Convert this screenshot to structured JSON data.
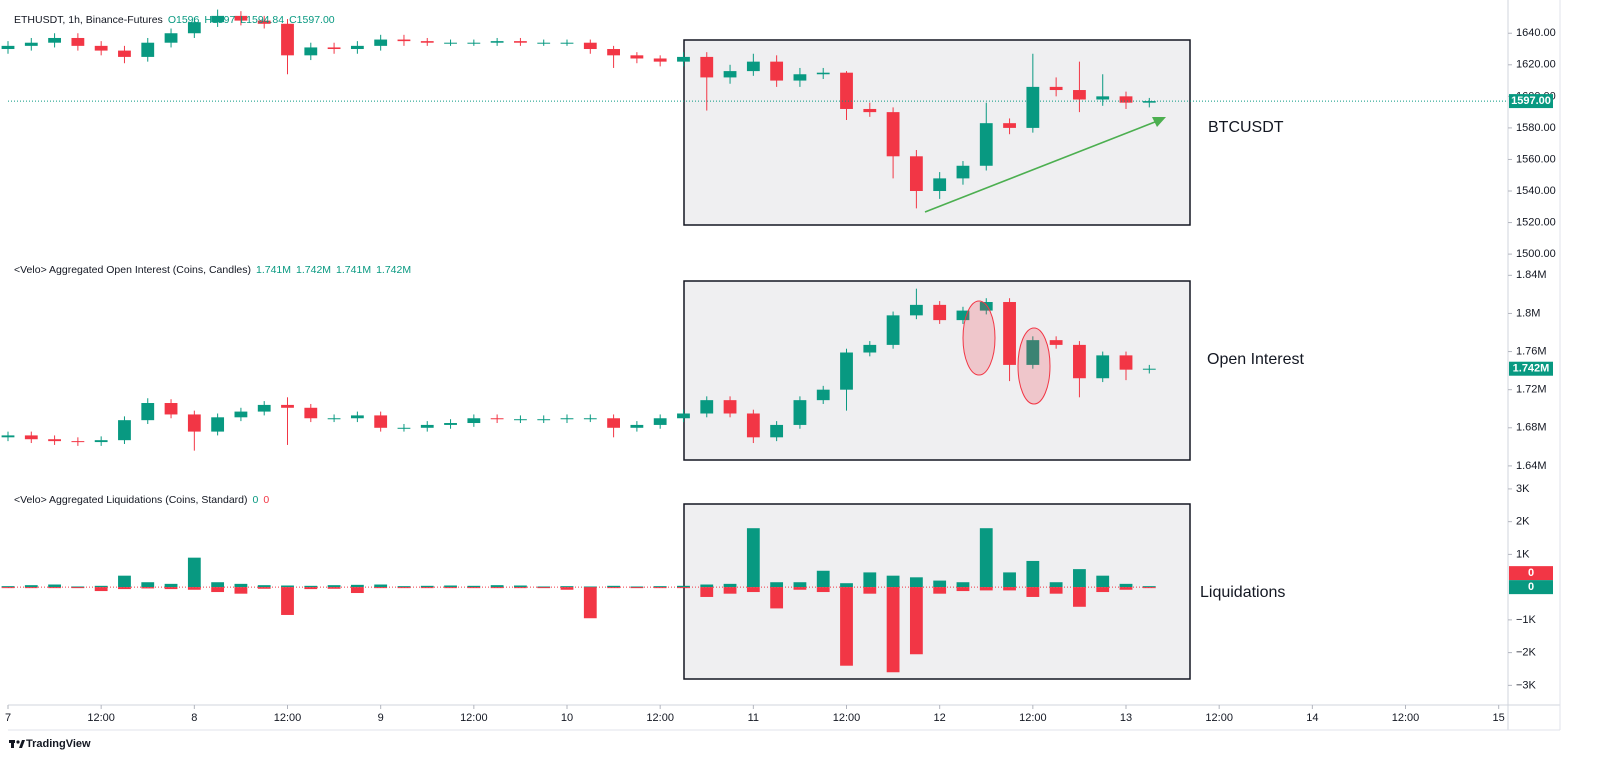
{
  "chart_data": [
    {
      "type": "candlestick",
      "title": "ETHUSDT, 1h, Binance-Futures",
      "ohlc_labels": [
        "O1596",
        "H1597",
        "L1594.84",
        "C1597.00"
      ],
      "last_label": "1597.00",
      "annotation": "BTCUSDT",
      "up_color": "#089981",
      "down_color": "#f23645",
      "x": [
        0,
        3,
        6,
        9,
        12,
        15,
        18,
        21,
        24,
        27,
        30,
        33,
        36,
        39,
        42,
        45,
        48,
        51,
        54,
        57,
        60,
        63,
        66,
        69,
        72,
        75,
        78,
        81,
        84,
        87,
        90,
        93,
        96,
        99,
        102,
        105,
        108,
        111,
        114,
        117,
        120,
        123,
        126,
        129,
        132,
        135,
        138,
        141,
        144,
        147
      ],
      "open": [
        1630,
        1632,
        1634,
        1637,
        1632,
        1629,
        1625,
        1634,
        1640,
        1647,
        1651,
        1648,
        1646,
        1626,
        1631,
        1630,
        1632,
        1636,
        1635,
        1634,
        1634,
        1634,
        1635,
        1634,
        1634,
        1634,
        1630,
        1626,
        1624,
        1622,
        1625,
        1612,
        1616,
        1622,
        1610,
        1614,
        1615,
        1592,
        1590,
        1562,
        1540,
        1548,
        1556,
        1583,
        1580,
        1606,
        1604,
        1598,
        1600,
        1596
      ],
      "high": [
        1635,
        1637,
        1640,
        1640,
        1635,
        1632,
        1637,
        1643,
        1650,
        1655,
        1654,
        1651,
        1649,
        1634,
        1634,
        1635,
        1639,
        1639,
        1637,
        1636,
        1636,
        1637,
        1637,
        1636,
        1636,
        1636,
        1632,
        1628,
        1626,
        1628,
        1628,
        1620,
        1627,
        1626,
        1618,
        1618,
        1616,
        1596,
        1593,
        1566,
        1552,
        1559,
        1596,
        1586,
        1627,
        1612,
        1622,
        1614,
        1603,
        1599
      ],
      "low": [
        1627,
        1629,
        1631,
        1629,
        1626,
        1621,
        1622,
        1631,
        1637,
        1644,
        1645,
        1643,
        1614,
        1623,
        1627,
        1627,
        1629,
        1632,
        1632,
        1632,
        1632,
        1632,
        1632,
        1632,
        1632,
        1627,
        1618,
        1621,
        1619,
        1619,
        1591,
        1608,
        1613,
        1606,
        1606,
        1611,
        1585,
        1587,
        1548,
        1529,
        1535,
        1544,
        1553,
        1576,
        1577,
        1600,
        1590,
        1594,
        1592,
        1593
      ],
      "close": [
        1632,
        1634,
        1637,
        1632,
        1629,
        1625,
        1634,
        1640,
        1647,
        1651,
        1648,
        1646,
        1626,
        1631,
        1630,
        1632,
        1636,
        1635,
        1634,
        1634,
        1634,
        1635,
        1634,
        1634,
        1634,
        1630,
        1626,
        1624,
        1622,
        1625,
        1612,
        1616,
        1622,
        1610,
        1614,
        1615,
        1592,
        1590,
        1562,
        1540,
        1548,
        1556,
        1583,
        1580,
        1606,
        1604,
        1598,
        1600,
        1596,
        1597
      ],
      "xlim": [
        0,
        193.2
      ],
      "xticks": [
        {
          "value": 0,
          "label": "7"
        },
        {
          "value": 12,
          "label": "12:00"
        },
        {
          "value": 24,
          "label": "8"
        },
        {
          "value": 36,
          "label": "12:00"
        },
        {
          "value": 48,
          "label": "9"
        },
        {
          "value": 60,
          "label": "12:00"
        },
        {
          "value": 72,
          "label": "10"
        },
        {
          "value": 84,
          "label": "12:00"
        },
        {
          "value": 96,
          "label": "11"
        },
        {
          "value": 108,
          "label": "12:00"
        },
        {
          "value": 120,
          "label": "12"
        },
        {
          "value": 132,
          "label": "12:00"
        },
        {
          "value": 144,
          "label": "13"
        },
        {
          "value": 156,
          "label": "12:00"
        },
        {
          "value": 168,
          "label": "14"
        },
        {
          "value": 180,
          "label": "12:00"
        },
        {
          "value": 192,
          "label": "15"
        }
      ],
      "ylim": [
        1495,
        1656
      ],
      "yticks": [
        {
          "value": 1500,
          "label": "1500.00"
        },
        {
          "value": 1520,
          "label": "1520.00"
        },
        {
          "value": 1540,
          "label": "1540.00"
        },
        {
          "value": 1560,
          "label": "1560.00"
        },
        {
          "value": 1580,
          "label": "1580.00"
        },
        {
          "value": 1600,
          "label": "1600.00"
        },
        {
          "value": 1620,
          "label": "1620.00"
        },
        {
          "value": 1640,
          "label": "1640.00"
        }
      ]
    },
    {
      "type": "candlestick",
      "title": "<Velo> Aggregated Open Interest (Coins, Candles)",
      "ohlc_labels": [
        "1.741M",
        "1.742M",
        "1.741M",
        "1.742M"
      ],
      "last_label": "1.742M",
      "annotation": "Open Interest",
      "up_color": "#089981",
      "down_color": "#f23645",
      "x": [
        0,
        3,
        6,
        9,
        12,
        15,
        18,
        21,
        24,
        27,
        30,
        33,
        36,
        39,
        42,
        45,
        48,
        51,
        54,
        57,
        60,
        63,
        66,
        69,
        72,
        75,
        78,
        81,
        84,
        87,
        90,
        93,
        96,
        99,
        102,
        105,
        108,
        111,
        114,
        117,
        120,
        123,
        126,
        129,
        132,
        135,
        138,
        141,
        144,
        147
      ],
      "open": [
        1.67,
        1.672,
        1.668,
        1.666,
        1.665,
        1.667,
        1.688,
        1.706,
        1.694,
        1.676,
        1.691,
        1.697,
        1.704,
        1.701,
        1.69,
        1.69,
        1.693,
        1.68,
        1.68,
        1.683,
        1.685,
        1.69,
        1.689,
        1.689,
        1.689,
        1.69,
        1.69,
        1.68,
        1.683,
        1.69,
        1.695,
        1.709,
        1.695,
        1.67,
        1.683,
        1.709,
        1.72,
        1.759,
        1.767,
        1.798,
        1.809,
        1.793,
        1.803,
        1.812,
        1.746,
        1.772,
        1.767,
        1.732,
        1.756,
        1.741
      ],
      "high": [
        1.676,
        1.676,
        1.672,
        1.67,
        1.671,
        1.692,
        1.711,
        1.71,
        1.698,
        1.695,
        1.701,
        1.708,
        1.712,
        1.705,
        1.694,
        1.697,
        1.697,
        1.684,
        1.687,
        1.689,
        1.694,
        1.694,
        1.693,
        1.693,
        1.694,
        1.694,
        1.694,
        1.687,
        1.694,
        1.699,
        1.713,
        1.713,
        1.699,
        1.687,
        1.713,
        1.724,
        1.763,
        1.771,
        1.802,
        1.826,
        1.813,
        1.807,
        1.816,
        1.816,
        1.776,
        1.776,
        1.771,
        1.76,
        1.76,
        1.746
      ],
      "low": [
        1.666,
        1.664,
        1.662,
        1.661,
        1.661,
        1.663,
        1.684,
        1.69,
        1.656,
        1.672,
        1.687,
        1.693,
        1.662,
        1.686,
        1.686,
        1.686,
        1.676,
        1.676,
        1.676,
        1.679,
        1.681,
        1.685,
        1.685,
        1.685,
        1.685,
        1.686,
        1.67,
        1.676,
        1.679,
        1.686,
        1.691,
        1.691,
        1.664,
        1.666,
        1.679,
        1.705,
        1.698,
        1.755,
        1.763,
        1.794,
        1.789,
        1.789,
        1.799,
        1.729,
        1.742,
        1.763,
        1.712,
        1.728,
        1.73,
        1.737
      ],
      "close": [
        1.672,
        1.668,
        1.666,
        1.665,
        1.667,
        1.688,
        1.706,
        1.694,
        1.676,
        1.691,
        1.697,
        1.704,
        1.701,
        1.69,
        1.69,
        1.693,
        1.68,
        1.68,
        1.683,
        1.685,
        1.69,
        1.689,
        1.689,
        1.689,
        1.69,
        1.69,
        1.68,
        1.683,
        1.69,
        1.695,
        1.709,
        1.695,
        1.67,
        1.683,
        1.709,
        1.72,
        1.759,
        1.767,
        1.798,
        1.809,
        1.793,
        1.803,
        1.812,
        1.746,
        1.772,
        1.767,
        1.732,
        1.756,
        1.741,
        1.742
      ],
      "ylim": [
        1.621,
        1.854
      ],
      "yticks": [
        {
          "value": 1.64,
          "label": "1.64M"
        },
        {
          "value": 1.68,
          "label": "1.68M"
        },
        {
          "value": 1.72,
          "label": "1.72M"
        },
        {
          "value": 1.76,
          "label": "1.76M"
        },
        {
          "value": 1.8,
          "label": "1.8M"
        },
        {
          "value": 1.84,
          "label": "1.84M"
        }
      ]
    },
    {
      "type": "bar",
      "title": "<Velo> Aggregated Liquidations (Coins, Standard)",
      "legend_values": [
        0,
        0
      ],
      "annotation": "Liquidations",
      "x": [
        0,
        3,
        6,
        9,
        12,
        15,
        18,
        21,
        24,
        27,
        30,
        33,
        36,
        39,
        42,
        45,
        48,
        51,
        54,
        57,
        60,
        63,
        66,
        69,
        72,
        75,
        78,
        81,
        84,
        87,
        90,
        93,
        96,
        99,
        102,
        105,
        108,
        111,
        114,
        117,
        120,
        123,
        126,
        129,
        132,
        135,
        138,
        141,
        144,
        147
      ],
      "series": [
        {
          "color": "#089981",
          "values": [
            30,
            60,
            80,
            20,
            40,
            350,
            150,
            100,
            900,
            150,
            100,
            60,
            50,
            40,
            60,
            70,
            80,
            30,
            40,
            50,
            40,
            60,
            50,
            20,
            30,
            20,
            40,
            20,
            30,
            40,
            80,
            100,
            1800,
            150,
            150,
            500,
            120,
            450,
            350,
            300,
            200,
            150,
            1800,
            450,
            800,
            150,
            550,
            350,
            100,
            30
          ]
        },
        {
          "color": "#f23645",
          "values": [
            -10,
            -20,
            -10,
            -30,
            -120,
            -60,
            -40,
            -60,
            -80,
            -150,
            -200,
            -50,
            -850,
            -60,
            -50,
            -180,
            -30,
            -20,
            -30,
            -20,
            -30,
            -20,
            -30,
            -20,
            -80,
            -950,
            -30,
            -20,
            -20,
            -30,
            -300,
            -200,
            -150,
            -650,
            -80,
            -150,
            -2400,
            -200,
            -2600,
            -2050,
            -200,
            -120,
            -100,
            -100,
            -300,
            -200,
            -600,
            -150,
            -80,
            -20
          ]
        }
      ],
      "ylim": [
        -3600,
        3150
      ],
      "yticks": [
        {
          "value": -3000,
          "label": "−3K"
        },
        {
          "value": -2000,
          "label": "−2K"
        },
        {
          "value": -1000,
          "label": "−1K"
        },
        {
          "value": 1000,
          "label": "1K"
        },
        {
          "value": 2000,
          "label": "2K"
        },
        {
          "value": 3000,
          "label": "3K"
        }
      ]
    }
  ],
  "footer": "TradingView"
}
